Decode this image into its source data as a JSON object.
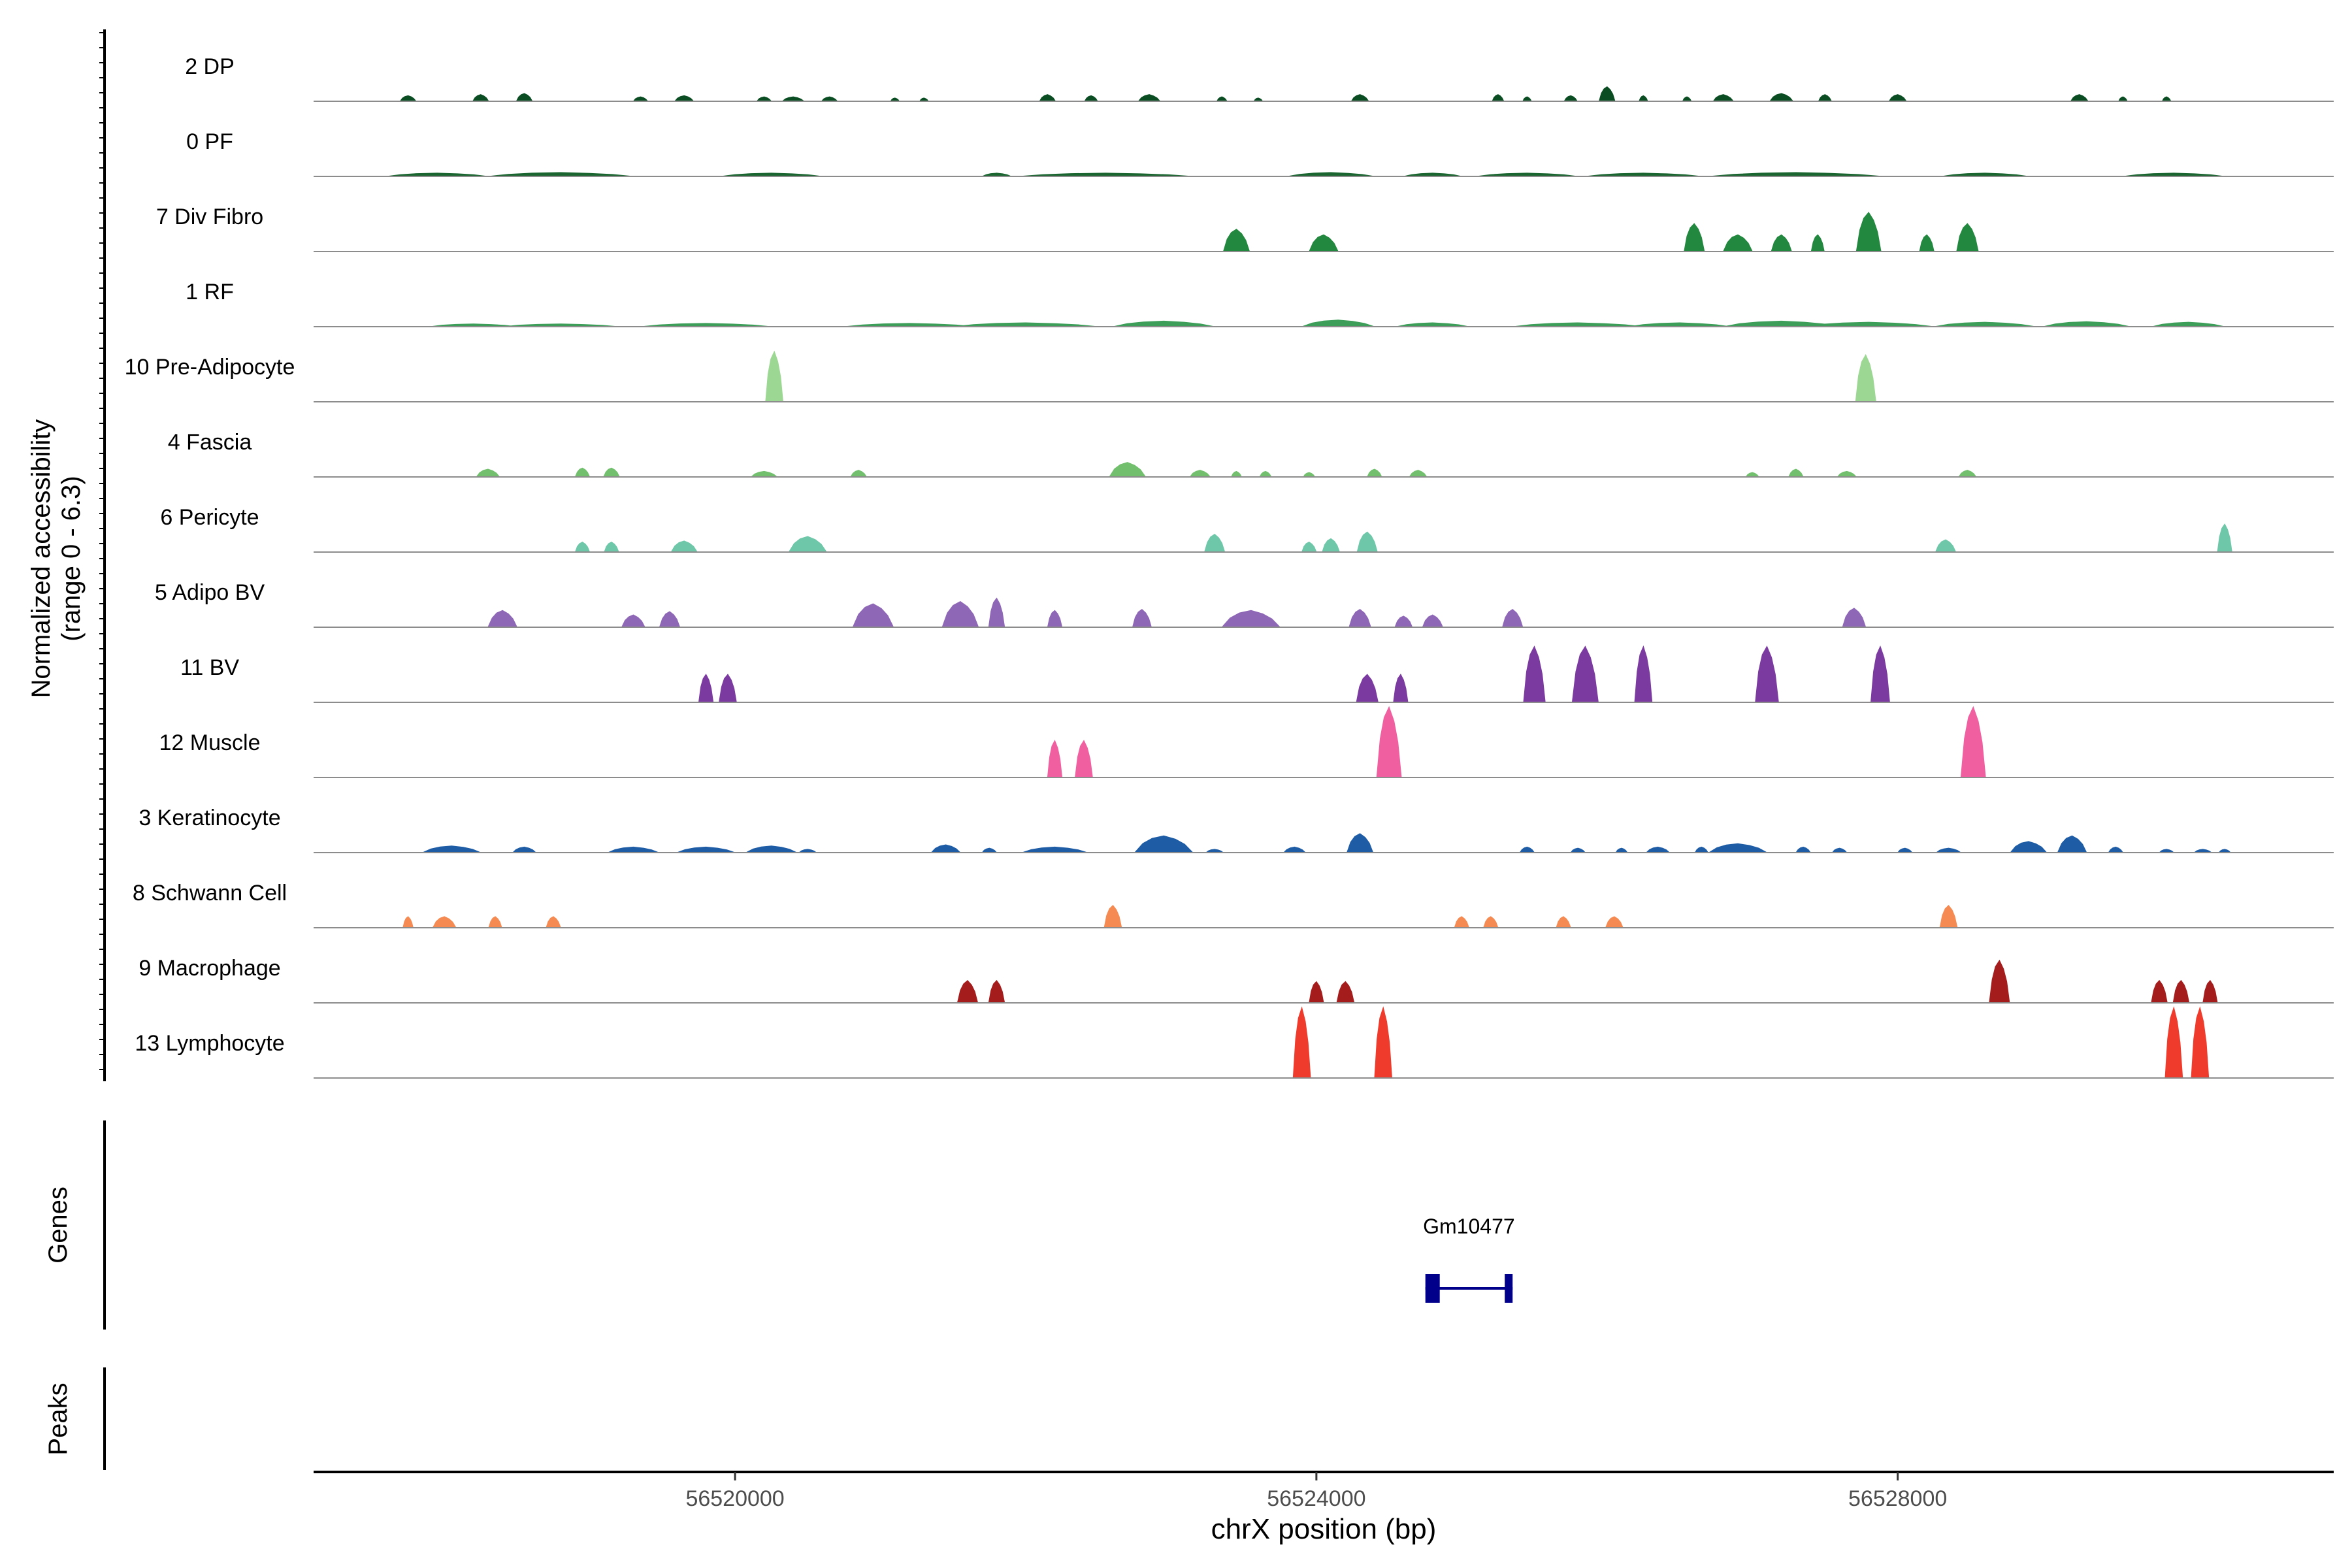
{
  "chart_data": {
    "type": "area",
    "ylabel": [
      "Normalized accessibility",
      "(range 0 - 6.3)"
    ],
    "ylim": [
      0,
      6.3
    ],
    "xlabel": "chrX position (bp)",
    "xlim": [
      56517100,
      56531000
    ],
    "xticks": [
      56520000,
      56524000,
      56528000
    ],
    "xtick_labels": [
      "56520000",
      "56524000",
      "56528000"
    ],
    "track_labels": {
      "genes": "Genes",
      "peaks": "Peaks"
    },
    "gene": {
      "name": "Gm10477",
      "start": 56524750,
      "end": 56525350,
      "strand": "+",
      "color": "#00008b"
    },
    "tracks": [
      {
        "name": "2 DP",
        "color": "#0b4d23",
        "peaks": [
          [
            56517750,
            110,
            0.5
          ],
          [
            56518250,
            110,
            0.6
          ],
          [
            56518550,
            110,
            0.7
          ],
          [
            56519350,
            100,
            0.4
          ],
          [
            56519650,
            130,
            0.5
          ],
          [
            56520200,
            100,
            0.4
          ],
          [
            56520400,
            150,
            0.4
          ],
          [
            56520650,
            110,
            0.4
          ],
          [
            56521100,
            60,
            0.3
          ],
          [
            56521300,
            60,
            0.3
          ],
          [
            56522150,
            110,
            0.6
          ],
          [
            56522450,
            90,
            0.5
          ],
          [
            56522850,
            150,
            0.6
          ],
          [
            56523350,
            70,
            0.4
          ],
          [
            56523600,
            60,
            0.3
          ],
          [
            56524300,
            120,
            0.6
          ],
          [
            56525250,
            80,
            0.6
          ],
          [
            56525450,
            60,
            0.4
          ],
          [
            56525750,
            90,
            0.5
          ],
          [
            56526000,
            110,
            1.3
          ],
          [
            56526250,
            60,
            0.5
          ],
          [
            56526550,
            60,
            0.4
          ],
          [
            56526800,
            140,
            0.6
          ],
          [
            56527200,
            160,
            0.7
          ],
          [
            56527500,
            90,
            0.6
          ],
          [
            56528000,
            120,
            0.6
          ],
          [
            56529250,
            120,
            0.6
          ],
          [
            56529550,
            60,
            0.4
          ],
          [
            56529850,
            60,
            0.4
          ]
        ]
      },
      {
        "name": "0 PF",
        "color": "#1b6630",
        "peaks": [
          [
            56517950,
            700,
            0.3
          ],
          [
            56518800,
            1000,
            0.35
          ],
          [
            56520250,
            700,
            0.3
          ],
          [
            56521800,
            200,
            0.3
          ],
          [
            56522550,
            1200,
            0.3
          ],
          [
            56524100,
            600,
            0.35
          ],
          [
            56524800,
            400,
            0.3
          ],
          [
            56525450,
            700,
            0.3
          ],
          [
            56526250,
            800,
            0.3
          ],
          [
            56527300,
            1200,
            0.35
          ],
          [
            56528600,
            600,
            0.3
          ],
          [
            56529900,
            700,
            0.3
          ]
        ]
      },
      {
        "name": "7 Div Fibro",
        "color": "#23883f",
        "peaks": [
          [
            56523450,
            180,
            2.0
          ],
          [
            56524050,
            200,
            1.5
          ],
          [
            56526600,
            140,
            2.5
          ],
          [
            56526900,
            200,
            1.5
          ],
          [
            56527200,
            140,
            1.5
          ],
          [
            56527450,
            90,
            1.5
          ],
          [
            56527800,
            170,
            3.5
          ],
          [
            56528200,
            100,
            1.5
          ],
          [
            56528480,
            150,
            2.5
          ]
        ]
      },
      {
        "name": "1 RF",
        "color": "#3d9e59",
        "peaks": [
          [
            56518200,
            600,
            0.25
          ],
          [
            56518800,
            800,
            0.25
          ],
          [
            56519800,
            900,
            0.3
          ],
          [
            56521200,
            900,
            0.3
          ],
          [
            56522000,
            1000,
            0.35
          ],
          [
            56522950,
            700,
            0.5
          ],
          [
            56524150,
            500,
            0.6
          ],
          [
            56524800,
            500,
            0.35
          ],
          [
            56525800,
            900,
            0.35
          ],
          [
            56526500,
            700,
            0.35
          ],
          [
            56527200,
            800,
            0.5
          ],
          [
            56527800,
            900,
            0.4
          ],
          [
            56528600,
            700,
            0.4
          ],
          [
            56529300,
            600,
            0.45
          ],
          [
            56530000,
            500,
            0.4
          ]
        ]
      },
      {
        "name": "10 Pre-Adipocyte",
        "color": "#9cd893",
        "peaks": [
          [
            56520270,
            120,
            4.5
          ],
          [
            56527780,
            140,
            4.2
          ]
        ]
      },
      {
        "name": "4 Fascia",
        "color": "#72c06e",
        "peaks": [
          [
            56518300,
            160,
            0.7
          ],
          [
            56518950,
            100,
            0.8
          ],
          [
            56519150,
            110,
            0.8
          ],
          [
            56520200,
            180,
            0.5
          ],
          [
            56520850,
            110,
            0.6
          ],
          [
            56522700,
            250,
            1.3
          ],
          [
            56523200,
            140,
            0.6
          ],
          [
            56523450,
            70,
            0.5
          ],
          [
            56523650,
            80,
            0.5
          ],
          [
            56523950,
            80,
            0.4
          ],
          [
            56524400,
            100,
            0.7
          ],
          [
            56524700,
            120,
            0.6
          ],
          [
            56527000,
            90,
            0.4
          ],
          [
            56527300,
            100,
            0.7
          ],
          [
            56527650,
            130,
            0.5
          ],
          [
            56528480,
            120,
            0.6
          ]
        ]
      },
      {
        "name": "6 Pericyte",
        "color": "#6fc7aa",
        "peaks": [
          [
            56518950,
            100,
            0.9
          ],
          [
            56519150,
            100,
            0.9
          ],
          [
            56519650,
            180,
            1.0
          ],
          [
            56520500,
            260,
            1.4
          ],
          [
            56523300,
            140,
            1.6
          ],
          [
            56523950,
            100,
            0.9
          ],
          [
            56524100,
            120,
            1.2
          ],
          [
            56524350,
            140,
            1.8
          ],
          [
            56528330,
            140,
            1.1
          ],
          [
            56530250,
            100,
            2.5
          ]
        ]
      },
      {
        "name": "5 Adipo BV",
        "color": "#8e67b6",
        "peaks": [
          [
            56518400,
            200,
            1.5
          ],
          [
            56519300,
            160,
            1.1
          ],
          [
            56519550,
            140,
            1.4
          ],
          [
            56520950,
            280,
            2.1
          ],
          [
            56521550,
            250,
            2.3
          ],
          [
            56521800,
            110,
            2.6
          ],
          [
            56522200,
            100,
            1.5
          ],
          [
            56522800,
            130,
            1.6
          ],
          [
            56523550,
            400,
            1.5
          ],
          [
            56524300,
            150,
            1.6
          ],
          [
            56524600,
            120,
            1.0
          ],
          [
            56524800,
            140,
            1.1
          ],
          [
            56525350,
            140,
            1.6
          ],
          [
            56527700,
            160,
            1.7
          ]
        ]
      },
      {
        "name": "11 BV",
        "color": "#7b3aa0",
        "peaks": [
          [
            56519800,
            100,
            2.5
          ],
          [
            56519950,
            120,
            2.5
          ],
          [
            56524350,
            150,
            2.5
          ],
          [
            56524580,
            100,
            2.5
          ],
          [
            56525500,
            150,
            5.0
          ],
          [
            56525850,
            180,
            5.0
          ],
          [
            56526250,
            120,
            5.0
          ],
          [
            56527100,
            160,
            5.0
          ],
          [
            56527880,
            130,
            5.0
          ]
        ]
      },
      {
        "name": "12 Muscle",
        "color": "#f060a0",
        "peaks": [
          [
            56522200,
            100,
            3.3
          ],
          [
            56522400,
            120,
            3.3
          ],
          [
            56524500,
            170,
            6.3
          ],
          [
            56528520,
            170,
            6.3
          ]
        ]
      },
      {
        "name": "3 Keratinocyte",
        "color": "#1e5ca5",
        "peaks": [
          [
            56518050,
            400,
            0.6
          ],
          [
            56518550,
            160,
            0.5
          ],
          [
            56519300,
            350,
            0.5
          ],
          [
            56519800,
            400,
            0.5
          ],
          [
            56520250,
            350,
            0.6
          ],
          [
            56520500,
            120,
            0.3
          ],
          [
            56521450,
            200,
            0.7
          ],
          [
            56521750,
            100,
            0.4
          ],
          [
            56522200,
            450,
            0.5
          ],
          [
            56522950,
            400,
            1.5
          ],
          [
            56523300,
            120,
            0.3
          ],
          [
            56523850,
            150,
            0.5
          ],
          [
            56524300,
            180,
            1.7
          ],
          [
            56525450,
            100,
            0.5
          ],
          [
            56525800,
            100,
            0.4
          ],
          [
            56526100,
            80,
            0.4
          ],
          [
            56526350,
            160,
            0.5
          ],
          [
            56526650,
            90,
            0.5
          ],
          [
            56526900,
            400,
            0.8
          ],
          [
            56527350,
            100,
            0.5
          ],
          [
            56527600,
            100,
            0.4
          ],
          [
            56528050,
            100,
            0.4
          ],
          [
            56528350,
            170,
            0.4
          ],
          [
            56528900,
            250,
            1.0
          ],
          [
            56529200,
            200,
            1.5
          ],
          [
            56529500,
            100,
            0.5
          ],
          [
            56529850,
            100,
            0.3
          ],
          [
            56530100,
            120,
            0.3
          ],
          [
            56530250,
            80,
            0.3
          ]
        ]
      },
      {
        "name": "8 Schwann Cell",
        "color": "#f58a52",
        "peaks": [
          [
            56517750,
            70,
            1.0
          ],
          [
            56518000,
            160,
            1.0
          ],
          [
            56518350,
            90,
            1.0
          ],
          [
            56518750,
            100,
            1.0
          ],
          [
            56522600,
            120,
            2.0
          ],
          [
            56525000,
            100,
            1.0
          ],
          [
            56525200,
            100,
            1.0
          ],
          [
            56525700,
            100,
            1.0
          ],
          [
            56526050,
            120,
            1.0
          ],
          [
            56528350,
            120,
            2.0
          ]
        ]
      },
      {
        "name": "9 Macrophage",
        "color": "#a41c1c",
        "peaks": [
          [
            56521600,
            140,
            2.0
          ],
          [
            56521800,
            110,
            2.0
          ],
          [
            56524000,
            100,
            1.9
          ],
          [
            56524200,
            120,
            1.9
          ],
          [
            56528700,
            140,
            3.8
          ],
          [
            56529800,
            110,
            2.0
          ],
          [
            56529950,
            110,
            2.0
          ],
          [
            56530150,
            100,
            2.0
          ]
        ]
      },
      {
        "name": "13 Lymphocyte",
        "color": "#ef3b2c",
        "peaks": [
          [
            56523900,
            120,
            6.3
          ],
          [
            56524460,
            120,
            6.3
          ],
          [
            56529900,
            120,
            6.3
          ],
          [
            56530080,
            120,
            6.3
          ]
        ]
      }
    ]
  }
}
